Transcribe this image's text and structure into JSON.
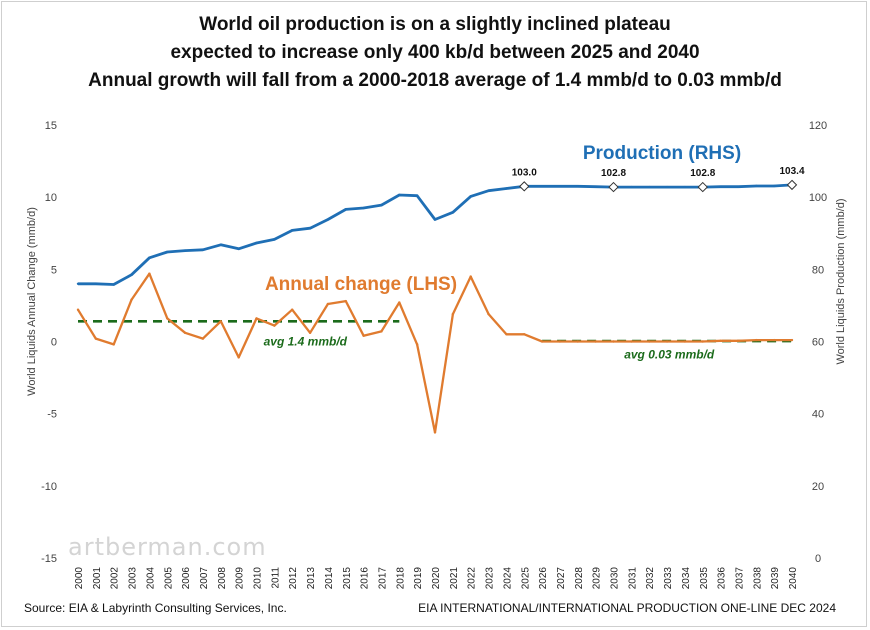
{
  "title": {
    "line1": "World oil production is on a slightly inclined plateau",
    "line2": "expected to increase only 400 kb/d between 2025 and 2040",
    "line3": "Annual growth will fall from a 2000-2018 average of 1.4 mmb/d to 0.03 mmb/d"
  },
  "footer": {
    "source": "Source: EIA & Labyrinth Consulting Services, Inc.",
    "credit": "EIA INTERNATIONAL/INTERNATIONAL PRODUCTION ONE-LINE DEC 2024"
  },
  "watermark": "artberman.com",
  "colors": {
    "production": "#1f6fb5",
    "annual_change": "#e07b2f",
    "average": "#1b6b1b",
    "axis_text": "#444444"
  },
  "chart_data": {
    "type": "line",
    "x": [
      2000,
      2001,
      2002,
      2003,
      2004,
      2005,
      2006,
      2007,
      2008,
      2009,
      2010,
      2011,
      2012,
      2013,
      2014,
      2015,
      2016,
      2017,
      2018,
      2019,
      2020,
      2021,
      2022,
      2023,
      2024,
      2025,
      2026,
      2027,
      2028,
      2029,
      2030,
      2031,
      2032,
      2033,
      2034,
      2035,
      2036,
      2037,
      2038,
      2039,
      2040
    ],
    "x_tick_labels": [
      "2000",
      "2001",
      "2002",
      "2003",
      "2004",
      "2005",
      "2006",
      "2007",
      "2008",
      "2009",
      "2010",
      "2011",
      "2012",
      "2013",
      "2014",
      "2015",
      "2016",
      "2017",
      "2018",
      "2019",
      "2020",
      "2021",
      "2022",
      "2023",
      "2024",
      "2025",
      "2026",
      "2027",
      "2028",
      "2029",
      "2030",
      "2031",
      "2032",
      "2033",
      "2034",
      "2035",
      "2036",
      "2037",
      "2038",
      "2039",
      "2040"
    ],
    "left_axis": {
      "label": "World Liquids Annual Change (mmb/d)",
      "ylim": [
        -15,
        15
      ],
      "ticks": [
        "15",
        "10",
        "5",
        "0",
        "-5",
        "-10",
        "-15"
      ]
    },
    "right_axis": {
      "label": "World Liquids Production (mmb/d)",
      "ylim": [
        0,
        120
      ],
      "ticks": [
        "120",
        "100",
        "80",
        "60",
        "40",
        "20",
        "0"
      ]
    },
    "series": [
      {
        "name": "Production (RHS)",
        "axis": "right",
        "values": [
          76.0,
          76.0,
          75.8,
          78.5,
          83.2,
          84.8,
          85.2,
          85.4,
          86.8,
          85.7,
          87.3,
          88.3,
          90.8,
          91.4,
          93.8,
          96.6,
          97.0,
          97.8,
          100.6,
          100.4,
          93.8,
          95.8,
          100.2,
          101.8,
          102.4,
          103.0,
          103.0,
          103.0,
          103.0,
          102.9,
          102.8,
          102.8,
          102.8,
          102.8,
          102.8,
          102.8,
          102.9,
          102.9,
          103.1,
          103.1,
          103.4
        ]
      },
      {
        "name": "Annual change (LHS)",
        "axis": "left",
        "values": [
          2.2,
          0.2,
          -0.2,
          2.9,
          4.7,
          1.6,
          0.6,
          0.2,
          1.4,
          -1.1,
          1.6,
          1.1,
          2.2,
          0.6,
          2.6,
          2.8,
          0.4,
          0.7,
          2.7,
          -0.2,
          -6.3,
          1.9,
          4.5,
          1.9,
          0.5,
          0.5,
          0.0,
          0.0,
          0.0,
          0.0,
          0.0,
          0.0,
          0.0,
          0.0,
          0.0,
          0.0,
          0.05,
          0.05,
          0.1,
          0.1,
          0.1
        ]
      }
    ],
    "averages": [
      {
        "label": "avg 1.4 mmb/d",
        "value": 1.4,
        "from": 2000,
        "to": 2018
      },
      {
        "label": "avg 0.03 mmb/d",
        "value": 0.03,
        "from": 2026,
        "to": 2040
      }
    ],
    "point_labels": [
      {
        "x": 2025,
        "value": 103.0,
        "text": "103.0"
      },
      {
        "x": 2030,
        "value": 102.8,
        "text": "102.8"
      },
      {
        "x": 2035,
        "value": 102.8,
        "text": "102.8"
      },
      {
        "x": 2040,
        "value": 103.4,
        "text": "103.4"
      }
    ],
    "annotations": [
      {
        "text": "Production (RHS)",
        "series": "production"
      },
      {
        "text": "Annual change (LHS)",
        "series": "annual_change"
      }
    ]
  }
}
